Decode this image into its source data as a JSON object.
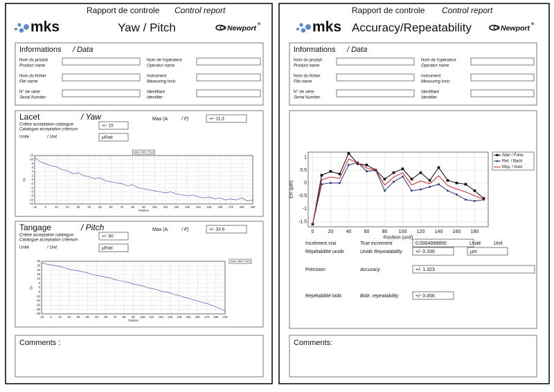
{
  "left_page": {
    "header": {
      "title_fr": "Rapport de controle",
      "title_en": "Control report",
      "logo": "mks",
      "title": "Yaw / Pitch",
      "brand": "Newport",
      "brand_mark": "®"
    },
    "info": {
      "title": "Informations",
      "subtitle": "/ Data",
      "fields": [
        {
          "fr": "Nom du produit",
          "en": "Product name"
        },
        {
          "fr": "Nom de l'opérateur",
          "en": "Operator name"
        },
        {
          "fr": "Nom du fichier",
          "en": "File name"
        },
        {
          "fr": "Instrument",
          "en": "Measuring Instr."
        },
        {
          "fr": "N° de série",
          "en": "Serial Number"
        },
        {
          "fr": "Identifiant",
          "en": "Identifier"
        }
      ]
    },
    "yaw": {
      "title": "Lacet",
      "title_en": "/ Yaw",
      "max_label": "Max (A",
      "max_label_en": "/ F)",
      "max_value": "+/- 11.3",
      "criterion_fr": "Critère acceptation catalogue",
      "criterion_en": "Catalogue acceptation criterium",
      "criterion_value": "+/- 15",
      "unit_fr": "Unité",
      "unit_en": "/ Unit",
      "unit_value": "µRad"
    },
    "pitch": {
      "title": "Tangage",
      "title_en": "/ Pitch",
      "max_label": "Max (A",
      "max_label_en": "/ F)",
      "max_value": "+/- 33.6",
      "criterion_fr": "Critère acceptation catalogue",
      "criterion_en": "Catalogue acceptation criterium",
      "criterion_value": "+/- 50",
      "unit_fr": "Unité",
      "unit_en": "/ Unit",
      "unit_value": "µRad"
    },
    "comments": "Comments :"
  },
  "right_page": {
    "header": {
      "title_fr": "Rapport de controle",
      "title_en": "Control report",
      "logo": "mks",
      "title": "Accuracy/Repeatability",
      "brand": "Newport",
      "brand_mark": "®"
    },
    "info": {
      "title": "Informations",
      "subtitle": "/ Data",
      "fields": [
        {
          "fr": "Nom du produit",
          "en": "Product name"
        },
        {
          "fr": "Nom de l'opérateur",
          "en": "Operator name"
        },
        {
          "fr": "Nom du fichier",
          "en": "File name"
        },
        {
          "fr": "Instrument",
          "en": "Measuring Instr."
        },
        {
          "fr": "N° de série",
          "en": "Serial Number"
        },
        {
          "fr": "Identifiant",
          "en": "Identifier"
        }
      ]
    },
    "increment": {
      "label": "Incrément vrai",
      "label_en": "True increment",
      "value": "0.0004998850",
      "unit_label": "Unité",
      "unit_label_en": "Unit"
    },
    "repeat_unidir": {
      "label": "Répétabilité unidir",
      "label_en": "Unidir Repeatability",
      "value": "+/- 0.330",
      "unit": "µm"
    },
    "accuracy": {
      "label": "Précision",
      "label_en": "Accuracy",
      "value": "+/- 1.323"
    },
    "repeat_bidir": {
      "label": "Répétabilité bidir.",
      "label_en": "Bidir. repeatability",
      "value": "+/- 0.456"
    },
    "comments": "Comments:"
  },
  "chart_data": [
    {
      "type": "line",
      "x_label": "Position",
      "y_label": "Err",
      "grid": true,
      "legend": "upper-center",
      "x": [
        -10,
        -5,
        0,
        5,
        10,
        15,
        20,
        25,
        30,
        35,
        40,
        45,
        50,
        55,
        60,
        65,
        70,
        75,
        80,
        85,
        90,
        95,
        100,
        105,
        110,
        115,
        120,
        125,
        130,
        135,
        140,
        145,
        150,
        155,
        160,
        165,
        170,
        175,
        180,
        185,
        190
      ],
      "xlim": [
        -10,
        190
      ],
      "xticks": [
        -10,
        0,
        10,
        20,
        30,
        40,
        50,
        60,
        70,
        80,
        90,
        100,
        110,
        120,
        130,
        140,
        150,
        160,
        170,
        180,
        190
      ],
      "ylim": [
        -12,
        12
      ],
      "yticks": [
        -12,
        -10,
        -8,
        -6,
        -4,
        -2,
        0,
        2,
        4,
        6,
        8,
        10,
        12
      ],
      "series": [
        {
          "name": "Aller / Forw.",
          "color": "#2c44a8",
          "marker": "none",
          "values": [
            11,
            9,
            8,
            7,
            6.5,
            5,
            4.5,
            3,
            3.5,
            2,
            1.5,
            0.5,
            1,
            -0.5,
            -1,
            -1.5,
            -2,
            -3,
            -2.5,
            -4,
            -4.5,
            -5,
            -5.5,
            -6,
            -6.5,
            -6,
            -7,
            -7.5,
            -8,
            -7.5,
            -8.5,
            -9,
            -8.5,
            -9.5,
            -9,
            -10,
            -9.5,
            -10,
            -9,
            -10.5,
            -10
          ]
        }
      ]
    },
    {
      "type": "line",
      "x_label": "Position",
      "y_label": "Err",
      "grid": true,
      "legend": "upper-right",
      "x": [
        -10,
        -5,
        0,
        5,
        10,
        15,
        20,
        25,
        30,
        35,
        40,
        45,
        50,
        55,
        60,
        65,
        70,
        75,
        80,
        85,
        90,
        95,
        100,
        105,
        110,
        115,
        120,
        125,
        130,
        135,
        140,
        145,
        150,
        155,
        160,
        165,
        170,
        175,
        180,
        185,
        190
      ],
      "xlim": [
        -10,
        190
      ],
      "xticks": [
        -10,
        0,
        10,
        20,
        30,
        40,
        50,
        60,
        70,
        80,
        90,
        100,
        110,
        120,
        130,
        140,
        150,
        160,
        170,
        180,
        190
      ],
      "ylim": [
        -30,
        30
      ],
      "yticks": [
        -30,
        -25,
        -20,
        -15,
        -10,
        -5,
        0,
        5,
        10,
        15,
        20,
        25,
        30
      ],
      "series": [
        {
          "name": "Aller / Forw.",
          "color": "#2c44a8",
          "marker": "none",
          "values": [
            28,
            27,
            26,
            25,
            24,
            23,
            21,
            20,
            19,
            18,
            17,
            15,
            14,
            13,
            12,
            11,
            9,
            8,
            7,
            6,
            4,
            3,
            2,
            0,
            -1,
            -2,
            -4,
            -5,
            -6,
            -8,
            -9,
            -11,
            -12,
            -14,
            -15,
            -17,
            -18,
            -20,
            -22,
            -24,
            -27
          ]
        }
      ]
    },
    {
      "type": "line",
      "x_label": "Position (unit)",
      "y_label": "Err (µm)",
      "grid": true,
      "legend": "outside-right",
      "x": [
        0,
        10,
        20,
        30,
        40,
        50,
        60,
        70,
        80,
        90,
        100,
        110,
        120,
        130,
        140,
        150,
        160,
        170,
        180,
        190
      ],
      "xlim": [
        -5,
        195
      ],
      "xticks": [
        0,
        20,
        40,
        60,
        80,
        100,
        120,
        140,
        160,
        180
      ],
      "ylim": [
        -1.7,
        1.2
      ],
      "yticks": [
        -1.5,
        -1,
        -0.5,
        0,
        0.5,
        1
      ],
      "series": [
        {
          "name": "Aller / Forw.",
          "color": "#000000",
          "marker": "square",
          "values": [
            -1.6,
            0.3,
            0.45,
            0.35,
            1.15,
            0.75,
            0.7,
            0.5,
            0.15,
            0.4,
            0.55,
            0.15,
            0.4,
            0.1,
            0.6,
            0.1,
            0.0,
            -0.05,
            -0.3,
            -0.6
          ]
        },
        {
          "name": "Ret. / Back",
          "color": "#2a2a7a",
          "marker": "circle",
          "values": [
            -1.6,
            -0.05,
            0.0,
            0.0,
            0.7,
            0.8,
            0.45,
            0.5,
            -0.3,
            0.05,
            0.25,
            -0.3,
            -0.25,
            -0.15,
            -0.05,
            -0.3,
            -0.45,
            -0.65,
            -0.7,
            -0.65
          ]
        },
        {
          "name": "Moy. / Aver.",
          "color": "#d02030",
          "marker": "none",
          "values": [
            -1.6,
            0.13,
            0.23,
            0.18,
            0.93,
            0.78,
            0.58,
            0.5,
            -0.08,
            0.23,
            0.4,
            -0.08,
            0.08,
            -0.03,
            0.28,
            -0.1,
            -0.23,
            -0.35,
            -0.5,
            -0.63
          ]
        }
      ]
    }
  ]
}
